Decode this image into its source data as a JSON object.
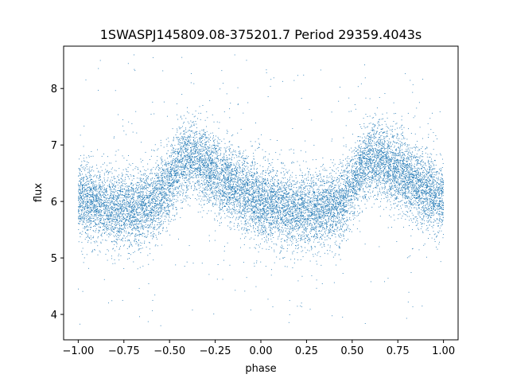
{
  "chart_data": {
    "type": "scatter",
    "title": "1SWASPJ145809.08-375201.7 Period 29359.4043s",
    "xlabel": "phase",
    "ylabel": "flux",
    "xlim": [
      -1.08,
      1.08
    ],
    "ylim": [
      3.55,
      8.75
    ],
    "x_ticks": [
      -1.0,
      -0.75,
      -0.5,
      -0.25,
      0.0,
      0.25,
      0.5,
      0.75,
      1.0
    ],
    "x_tick_labels": [
      "−1.00",
      "−0.75",
      "−0.50",
      "−0.25",
      "0.00",
      "0.25",
      "0.50",
      "0.75",
      "1.00"
    ],
    "y_ticks": [
      4,
      5,
      6,
      7,
      8
    ],
    "y_tick_labels": [
      "4",
      "5",
      "6",
      "7",
      "8"
    ],
    "grid": false,
    "legend": "none",
    "marker_color": "#1f77b4",
    "series": [
      {
        "x_range": [
          -1.0,
          1.0
        ],
        "approx_point_count": 14000,
        "trend": {
          "x": [
            -1.0,
            -0.9,
            -0.8,
            -0.7,
            -0.6,
            -0.5,
            -0.45,
            -0.4,
            -0.35,
            -0.3,
            -0.25,
            -0.2,
            -0.1,
            0.0,
            0.1,
            0.2,
            0.3,
            0.4,
            0.45,
            0.5,
            0.55,
            0.6,
            0.65,
            0.7,
            0.75,
            0.8,
            0.9,
            1.0
          ],
          "y": [
            6.05,
            5.95,
            5.9,
            5.85,
            5.95,
            6.3,
            6.65,
            6.8,
            6.75,
            6.65,
            6.5,
            6.35,
            6.2,
            6.0,
            5.9,
            5.85,
            5.85,
            5.9,
            6.0,
            6.25,
            6.6,
            6.75,
            6.75,
            6.65,
            6.55,
            6.4,
            6.2,
            6.05
          ]
        },
        "scatter_sd": 0.32,
        "outlier_range": [
          3.8,
          8.6
        ]
      }
    ]
  }
}
